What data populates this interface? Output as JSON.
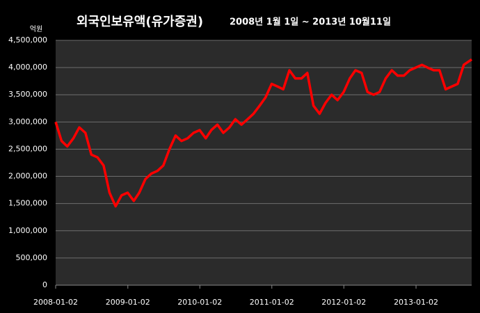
{
  "chart_data": {
    "type": "line",
    "title": "외국인보유액(유가증권)",
    "subtitle": "2008년 1월 1일 ~ 2013년 10월11일",
    "y_label": "억원",
    "x": [
      "2008-01-02",
      "2008-02-01",
      "2008-03-01",
      "2008-04-01",
      "2008-05-01",
      "2008-06-01",
      "2008-07-01",
      "2008-08-01",
      "2008-09-01",
      "2008-10-01",
      "2008-11-01",
      "2008-12-01",
      "2009-01-01",
      "2009-02-01",
      "2009-03-01",
      "2009-04-01",
      "2009-05-01",
      "2009-06-01",
      "2009-07-01",
      "2009-08-01",
      "2009-09-01",
      "2009-10-01",
      "2009-11-01",
      "2009-12-01",
      "2010-01-01",
      "2010-02-01",
      "2010-03-01",
      "2010-04-01",
      "2010-05-01",
      "2010-06-01",
      "2010-07-01",
      "2010-08-01",
      "2010-09-01",
      "2010-10-01",
      "2010-11-01",
      "2010-12-01",
      "2011-01-01",
      "2011-02-01",
      "2011-03-01",
      "2011-04-01",
      "2011-05-01",
      "2011-06-01",
      "2011-07-01",
      "2011-08-01",
      "2011-09-01",
      "2011-10-01",
      "2011-11-01",
      "2011-12-01",
      "2012-01-01",
      "2012-02-01",
      "2012-03-01",
      "2012-04-01",
      "2012-05-01",
      "2012-06-01",
      "2012-07-01",
      "2012-08-01",
      "2012-09-01",
      "2012-10-01",
      "2012-11-01",
      "2012-12-01",
      "2013-01-01",
      "2013-02-01",
      "2013-03-01",
      "2013-04-01",
      "2013-05-01",
      "2013-06-01",
      "2013-07-01",
      "2013-08-01",
      "2013-09-01",
      "2013-10-11"
    ],
    "series": [
      {
        "color": "#ff0000",
        "values": [
          3000000,
          2650000,
          2550000,
          2700000,
          2900000,
          2800000,
          2400000,
          2350000,
          2200000,
          1700000,
          1450000,
          1650000,
          1700000,
          1550000,
          1700000,
          1950000,
          2050000,
          2100000,
          2200000,
          2500000,
          2750000,
          2650000,
          2700000,
          2800000,
          2850000,
          2700000,
          2850000,
          2950000,
          2800000,
          2900000,
          3050000,
          2950000,
          3050000,
          3150000,
          3300000,
          3450000,
          3700000,
          3650000,
          3600000,
          3950000,
          3800000,
          3800000,
          3900000,
          3300000,
          3150000,
          3350000,
          3500000,
          3400000,
          3550000,
          3800000,
          3950000,
          3900000,
          3550000,
          3500000,
          3550000,
          3800000,
          3950000,
          3850000,
          3850000,
          3950000,
          4000000,
          4050000,
          4000000,
          3950000,
          3950000,
          3600000,
          3650000,
          3700000,
          4050000,
          4150000
        ]
      }
    ],
    "xlim": [
      "2008-01-02",
      "2013-10-11"
    ],
    "xticks": [
      "2008-01-02",
      "2009-01-02",
      "2010-01-02",
      "2011-01-02",
      "2012-01-02",
      "2013-01-02"
    ],
    "ylim": [
      0,
      4500000
    ],
    "yticks": [
      0,
      {
        "value": 500000,
        "label": "500,000"
      },
      {
        "value": 1000000,
        "label": "1,000,000"
      },
      {
        "value": 1500000,
        "label": "1,500,000"
      },
      {
        "value": 2000000,
        "label": "2,000,000"
      },
      {
        "value": 2500000,
        "label": "2,500,000"
      },
      {
        "value": 3000000,
        "label": "3,000,000"
      },
      {
        "value": 3500000,
        "label": "3,500,000"
      },
      {
        "value": 4000000,
        "label": "4,000,000"
      },
      {
        "value": 4500000,
        "label": "4,500,000"
      }
    ],
    "grid": true
  }
}
